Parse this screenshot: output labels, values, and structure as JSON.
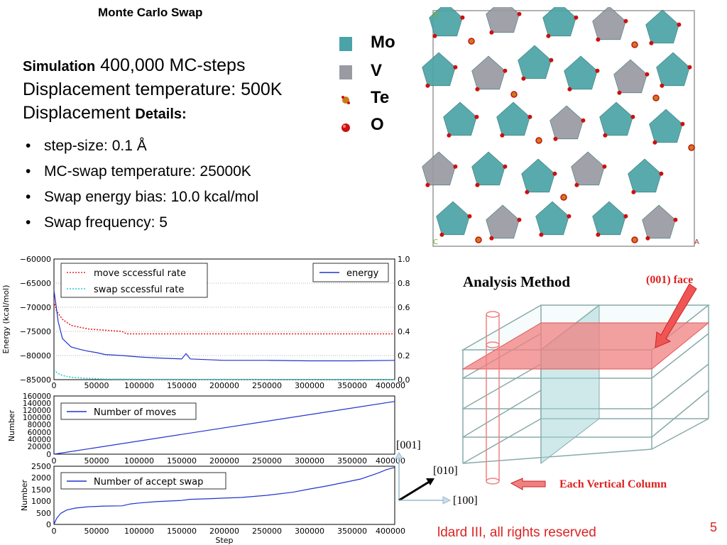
{
  "slide": {
    "title": "Monte Carlo Swap",
    "sim_bold": "Simulation",
    "sim_rest": " 400,000 MC-steps",
    "disp_temp": "Displacement temperature: 500K",
    "disp_label": "Displacement ",
    "details_bold": "Details:",
    "bullets": [
      "step-size: 0.1 Å",
      "MC-swap temperature: 25000K",
      "Swap energy bias:  10.0 kcal/mol",
      "Swap frequency: 5"
    ],
    "bullet_char": "•",
    "footer": "ldard III, all rights reserved",
    "page_number": "5"
  },
  "structure_legend": [
    {
      "label": "Mo",
      "color": "#4aa3a6",
      "shape": "square"
    },
    {
      "label": "V",
      "color": "#9a9aa2",
      "shape": "square"
    },
    {
      "label": "Te",
      "color": "#c97d1a",
      "shape": "atom"
    },
    {
      "label": "O",
      "color": "#cc1010",
      "shape": "atom"
    }
  ],
  "structure_corner_labels": {
    "b": "B",
    "c": "C",
    "a": "A"
  },
  "analysis": {
    "title": "Analysis Method",
    "face_label": "(001) face",
    "column_label": "Each Vertical Column",
    "axis_001": "[001]",
    "axis_010": "[010]",
    "axis_100": "[100]"
  },
  "colors": {
    "energy": "#2233cc",
    "move_rate": "#ee2222",
    "swap_rate": "#22cccc",
    "accent_red": "#d22222"
  },
  "chart_data": [
    {
      "type": "line",
      "x_ticks": [
        "0",
        "50000",
        "100000",
        "150000",
        "200000",
        "250000",
        "300000",
        "350000",
        "400000"
      ],
      "xlim": [
        0,
        400000
      ],
      "ylabel": "Energy (kcal/mol)",
      "ylim": [
        -85000,
        -60000
      ],
      "y_ticks": [
        "−60000",
        "−65000",
        "−70000",
        "−75000",
        "−80000",
        "−85000"
      ],
      "y2lim": [
        0.0,
        1.0
      ],
      "y2_ticks": [
        "1.0",
        "0.8",
        "0.6",
        "0.4",
        "0.2",
        "0.0"
      ],
      "legend_left": [
        "move sccessful rate",
        "swap sccessful rate"
      ],
      "legend_right": [
        "energy"
      ],
      "grid": "horizontal dotted at right-axis ticks",
      "series": [
        {
          "name": "energy",
          "axis": "left",
          "x": [
            0,
            2000,
            5000,
            10000,
            20000,
            30000,
            40000,
            50000,
            60000,
            80000,
            100000,
            120000,
            150000,
            155000,
            160000,
            200000,
            250000,
            300000,
            350000,
            400000
          ],
          "y": [
            -66500,
            -69000,
            -73000,
            -76500,
            -78200,
            -78700,
            -79100,
            -79400,
            -79800,
            -80000,
            -80300,
            -80500,
            -80700,
            -79600,
            -80700,
            -81000,
            -81000,
            -81100,
            -81100,
            -81000
          ]
        },
        {
          "name": "move sccessful rate",
          "axis": "right",
          "x": [
            0,
            3000,
            10000,
            20000,
            40000,
            60000,
            80000,
            85000,
            100000,
            200000,
            300000,
            400000
          ],
          "y": [
            0.65,
            0.57,
            0.5,
            0.45,
            0.42,
            0.41,
            0.4,
            0.38,
            0.38,
            0.38,
            0.38,
            0.38
          ]
        },
        {
          "name": "swap sccessful rate",
          "axis": "right",
          "x": [
            0,
            5000,
            10000,
            20000,
            40000,
            60000,
            100000,
            200000,
            300000,
            400000
          ],
          "y": [
            0.08,
            0.05,
            0.035,
            0.02,
            0.01,
            0.005,
            0.003,
            0.002,
            0.001,
            0.001
          ]
        }
      ]
    },
    {
      "type": "line",
      "ylabel": "Number",
      "ylim": [
        0,
        160000
      ],
      "y_ticks": [
        "160000",
        "140000",
        "120000",
        "100000",
        "80000",
        "60000",
        "40000",
        "20000",
        "0"
      ],
      "x_ticks": [
        "0",
        "50000",
        "100000",
        "150000",
        "200000",
        "250000",
        "300000",
        "350000",
        "400000"
      ],
      "xlim": [
        0,
        400000
      ],
      "series": [
        {
          "name": "Number of moves",
          "x": [
            0,
            400000
          ],
          "y": [
            0,
            145000
          ]
        }
      ]
    },
    {
      "type": "line",
      "ylabel": "Number",
      "xlabel": "Step",
      "ylim": [
        0,
        2500
      ],
      "y_ticks": [
        "2500",
        "2000",
        "1500",
        "1000",
        "500",
        "0"
      ],
      "x_ticks": [
        "0",
        "50000",
        "100000",
        "150000",
        "200000",
        "250000",
        "300000",
        "350000",
        "400000"
      ],
      "xlim": [
        0,
        400000
      ],
      "series": [
        {
          "name": "Number of accept swap",
          "x": [
            0,
            3000,
            8000,
            15000,
            25000,
            40000,
            60000,
            80000,
            90000,
            100000,
            120000,
            150000,
            160000,
            180000,
            200000,
            220000,
            250000,
            280000,
            300000,
            320000,
            340000,
            360000,
            380000,
            390000,
            400000
          ],
          "y": [
            0,
            250,
            480,
            620,
            700,
            760,
            790,
            800,
            880,
            920,
            980,
            1030,
            1080,
            1100,
            1130,
            1160,
            1250,
            1380,
            1520,
            1650,
            1800,
            1950,
            2200,
            2350,
            2450
          ]
        }
      ]
    }
  ]
}
